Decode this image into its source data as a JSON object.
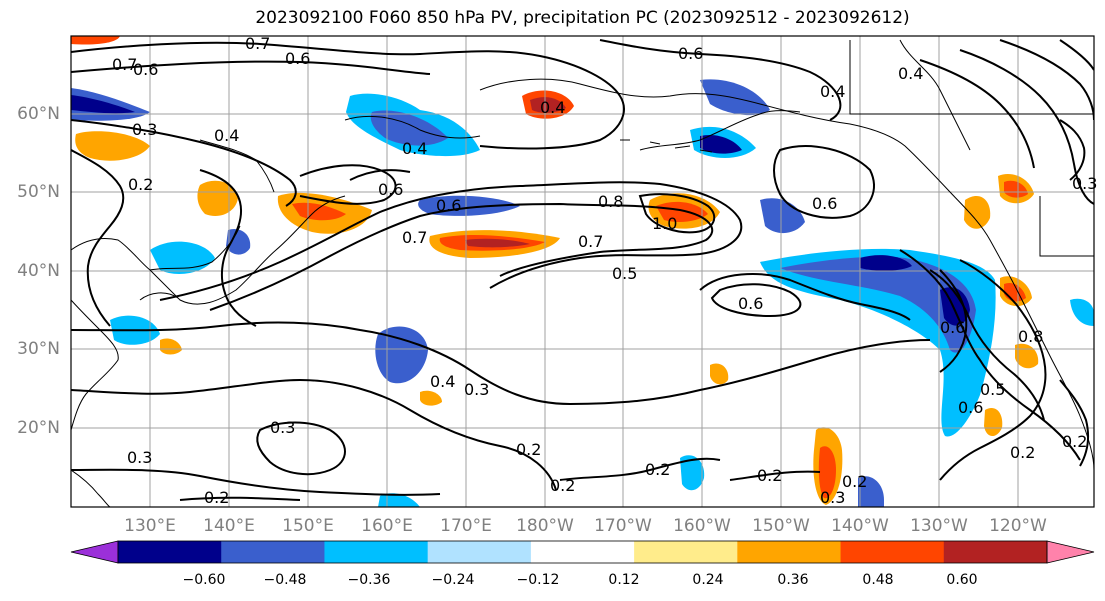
{
  "title": "2023092100 F060 850 hPa PV, precipitation PC (2023092512 - 2023092612)",
  "lat_labels": [
    "60°N",
    "50°N",
    "40°N",
    "30°N",
    "20°N"
  ],
  "lon_labels": [
    "130°E",
    "140°E",
    "150°E",
    "160°E",
    "170°E",
    "180°W",
    "170°W",
    "160°W",
    "150°W",
    "140°W",
    "130°W",
    "120°W"
  ],
  "contour_labels": [
    "0.7",
    "0.6",
    "0.7",
    "0.6",
    "0.3",
    "0.4",
    "0.2",
    "0.6",
    "0.4",
    "0.7",
    "0.6",
    "0.4",
    "0.6",
    "0.8",
    "1.0",
    "0.7",
    "0.5",
    "0.6",
    "0.6",
    "0.4",
    "0.3",
    "0.4",
    "0.3",
    "0.3",
    "0.2",
    "0.2",
    "0.2",
    "0.2",
    "0.2",
    "0.3",
    "0.2",
    "0.6",
    "0.8",
    "0.5",
    "0.6",
    "0.2",
    "0.4",
    "0.3",
    "0.2"
  ],
  "colorbar": {
    "ticks": [
      "−0.60",
      "−0.48",
      "−0.36",
      "−0.24",
      "−0.12",
      "0.12",
      "0.24",
      "0.36",
      "0.48",
      "0.60"
    ],
    "colors": [
      "#9b30d9",
      "#00008b",
      "#3a5fcd",
      "#00bfff",
      "#b0e2ff",
      "#ffffff",
      "#ffec8b",
      "#ffa500",
      "#ff4500",
      "#b22222",
      "#ff82ab"
    ]
  },
  "colors": {
    "neg_strong": "#3a5fcd",
    "neg_deep": "#00008b",
    "neg_mid": "#00bfff",
    "neg_light": "#b0e2ff",
    "pos_light": "#ffec8b",
    "pos_mid": "#ffa500",
    "pos_strong": "#ff4500",
    "pos_deep": "#b22222"
  }
}
